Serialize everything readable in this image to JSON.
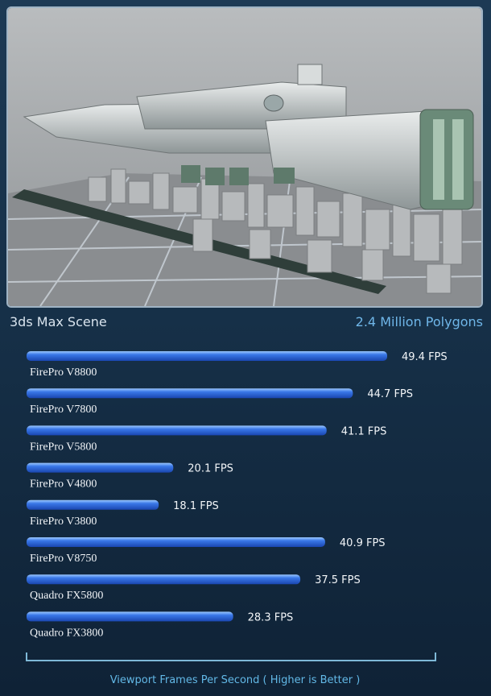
{
  "header": {
    "scene_title": "3ds Max Scene",
    "scene_stat": "2.4 Million Polygons"
  },
  "colors": {
    "bar": "#2a62d8",
    "bar_highlight": "#8fc0ff",
    "axis": "#7fb9d8",
    "title_accent": "#6fb6e8"
  },
  "chart_data": {
    "type": "bar",
    "orientation": "horizontal",
    "categories": [
      "FirePro V8800",
      "FirePro V7800",
      "FirePro V5800",
      "FirePro V4800",
      "FirePro V3800",
      "FirePro V8750",
      "Quadro FX5800",
      "Quadro FX3800"
    ],
    "values": [
      49.4,
      44.7,
      41.1,
      20.1,
      18.1,
      40.9,
      37.5,
      28.3
    ],
    "value_labels": [
      "49.4 FPS",
      "44.7 FPS",
      "41.1 FPS",
      "20.1 FPS",
      "18.1 FPS",
      "40.9 FPS",
      "37.5 FPS",
      "28.3 FPS"
    ],
    "xlabel": "Viewport Frames Per Second ( Higher is Better )",
    "xlim": [
      0,
      60
    ],
    "grid": false,
    "legend": "none"
  }
}
